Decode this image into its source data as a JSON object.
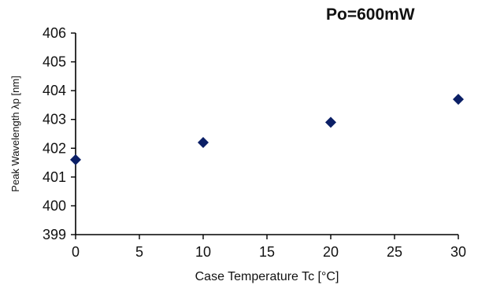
{
  "chart_data": {
    "type": "scatter",
    "title": "Po=600mW",
    "xlabel": "Case Temperature  Tc [°C]",
    "ylabel": "Peak Wavelength λp [nm]",
    "xlim": [
      0,
      30
    ],
    "ylim": [
      399,
      406
    ],
    "xticks": [
      0,
      5,
      10,
      15,
      20,
      25,
      30
    ],
    "yticks": [
      399,
      400,
      401,
      402,
      403,
      404,
      405,
      406
    ],
    "grid": false,
    "legend": "none",
    "marker": "diamond",
    "series": [
      {
        "x": [
          0,
          10,
          20,
          30
        ],
        "y": [
          401.6,
          402.2,
          402.9,
          403.7
        ]
      }
    ]
  },
  "colors": {
    "marker": "#0b1f66",
    "axis": "#000000",
    "text": "#111111"
  }
}
